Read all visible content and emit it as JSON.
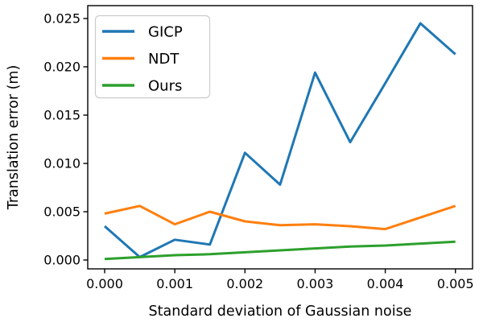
{
  "figure": {
    "background": "#ffffff"
  },
  "chart_data": {
    "type": "line",
    "title": "",
    "xlabel": "Standard deviation of Gaussian noise",
    "ylabel": "Translation error (m)",
    "x": [
      0.0,
      0.0005,
      0.001,
      0.0015,
      0.002,
      0.0025,
      0.003,
      0.0035,
      0.004,
      0.0045,
      0.005
    ],
    "series": [
      {
        "name": "GICP",
        "color": "#1f77b4",
        "values": [
          0.0035,
          0.0003,
          0.0021,
          0.0016,
          0.0111,
          0.0078,
          0.0194,
          0.0122,
          0.0183,
          0.0245,
          0.0213
        ]
      },
      {
        "name": "NDT",
        "color": "#ff7f0e",
        "values": [
          0.0048,
          0.0056,
          0.0037,
          0.005,
          0.004,
          0.0036,
          0.0037,
          0.0035,
          0.0032,
          0.0044,
          0.0056
        ]
      },
      {
        "name": "Ours",
        "color": "#2ca02c",
        "values": [
          0.0001,
          0.0003,
          0.0005,
          0.0006,
          0.0008,
          0.001,
          0.0012,
          0.0014,
          0.0015,
          0.0017,
          0.0019
        ]
      }
    ],
    "xticks": [
      0,
      0.001,
      0.002,
      0.003,
      0.004,
      0.005
    ],
    "xtick_labels": [
      "0.000",
      "0.001",
      "0.002",
      "0.003",
      "0.004",
      "0.005"
    ],
    "yticks": [
      0,
      0.005,
      0.01,
      0.015,
      0.02,
      0.025
    ],
    "ytick_labels": [
      "0.000",
      "0.005",
      "0.010",
      "0.015",
      "0.020",
      "0.025"
    ],
    "xlim": [
      -0.000241,
      0.005244
    ],
    "ylim": [
      -0.000917,
      0.026333
    ],
    "grid": false,
    "legend": {
      "position": "upper left",
      "entries": [
        "GICP",
        "NDT",
        "Ours"
      ]
    },
    "axis_color": "#000000",
    "legend_border_color": "#cccccc",
    "line_width": 3
  }
}
